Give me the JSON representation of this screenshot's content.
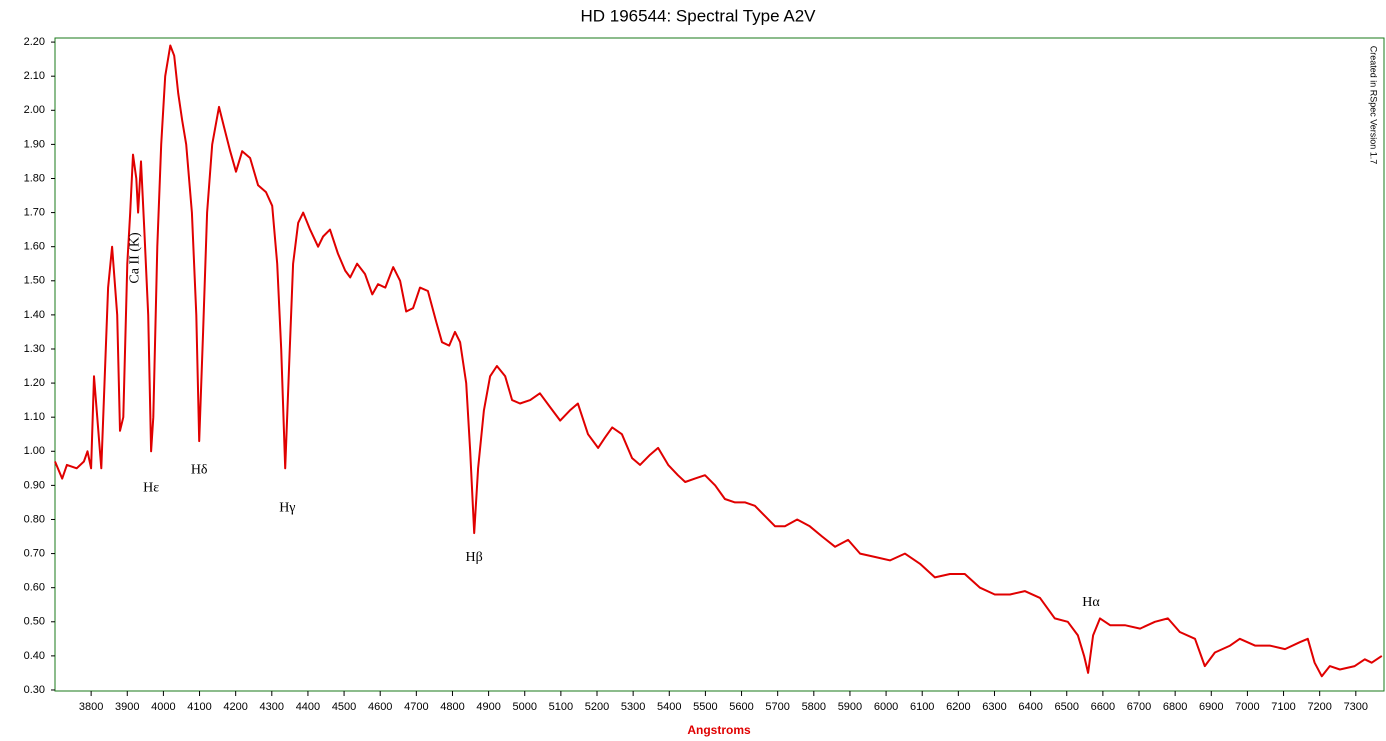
{
  "chart_data": {
    "type": "line",
    "title": "HD 196544: Spectral Type A2V",
    "x_label": "Angstroms",
    "watermark": "Created in RSpec Version 1.7",
    "color": "#e00000",
    "border_color": "#1a7a1a",
    "x": [
      3700,
      3720,
      3733,
      3760,
      3780,
      3790,
      3800,
      3808,
      3828,
      3847,
      3858,
      3872,
      3880,
      3889,
      3900,
      3908,
      3916,
      3925,
      3930,
      3938,
      3947,
      3958,
      3966,
      3972,
      3983,
      3994,
      4005,
      4019,
      4030,
      4041,
      4052,
      4063,
      4079,
      4091,
      4099,
      4110,
      4121,
      4135,
      4154,
      4168,
      4185,
      4201,
      4218,
      4240,
      4262,
      4284,
      4301,
      4315,
      4326,
      4337,
      4348,
      4359,
      4373,
      4387,
      4406,
      4428,
      4442,
      4461,
      4483,
      4503,
      4517,
      4536,
      4558,
      4578,
      4594,
      4614,
      4636,
      4655,
      4672,
      4691,
      4710,
      4732,
      4755,
      4771,
      4791,
      4807,
      4821,
      4838,
      4849,
      4860,
      4871,
      4887,
      4904,
      4923,
      4946,
      4965,
      4987,
      5015,
      5042,
      5070,
      5098,
      5125,
      5147,
      5175,
      5203,
      5222,
      5242,
      5269,
      5297,
      5319,
      5347,
      5369,
      5397,
      5424,
      5444,
      5471,
      5499,
      5527,
      5554,
      5582,
      5610,
      5637,
      5665,
      5693,
      5720,
      5754,
      5789,
      5823,
      5859,
      5895,
      5928,
      5970,
      6011,
      6052,
      6094,
      6135,
      6177,
      6218,
      6260,
      6301,
      6343,
      6384,
      6426,
      6467,
      6503,
      6531,
      6548,
      6559,
      6573,
      6592,
      6620,
      6661,
      6703,
      6744,
      6780,
      6813,
      6855,
      6882,
      6910,
      6952,
      6979,
      7021,
      7062,
      7104,
      7145,
      7167,
      7186,
      7206,
      7228,
      7256,
      7297,
      7325,
      7344,
      7372
    ],
    "values": [
      0.97,
      0.92,
      0.96,
      0.95,
      0.97,
      1.0,
      0.95,
      1.22,
      0.95,
      1.48,
      1.6,
      1.4,
      1.06,
      1.1,
      1.55,
      1.7,
      1.87,
      1.8,
      1.7,
      1.85,
      1.65,
      1.4,
      1.0,
      1.1,
      1.6,
      1.9,
      2.1,
      2.19,
      2.16,
      2.05,
      1.97,
      1.9,
      1.7,
      1.4,
      1.03,
      1.35,
      1.7,
      1.9,
      2.01,
      1.95,
      1.88,
      1.82,
      1.88,
      1.86,
      1.78,
      1.76,
      1.72,
      1.55,
      1.3,
      0.95,
      1.25,
      1.55,
      1.67,
      1.7,
      1.65,
      1.6,
      1.63,
      1.65,
      1.58,
      1.53,
      1.51,
      1.55,
      1.52,
      1.46,
      1.49,
      1.48,
      1.54,
      1.5,
      1.41,
      1.42,
      1.48,
      1.47,
      1.38,
      1.32,
      1.31,
      1.35,
      1.32,
      1.2,
      1.0,
      0.76,
      0.95,
      1.12,
      1.22,
      1.25,
      1.22,
      1.15,
      1.14,
      1.15,
      1.17,
      1.13,
      1.09,
      1.12,
      1.14,
      1.05,
      1.01,
      1.04,
      1.07,
      1.05,
      0.98,
      0.96,
      0.99,
      1.01,
      0.96,
      0.93,
      0.91,
      0.92,
      0.93,
      0.9,
      0.86,
      0.85,
      0.85,
      0.84,
      0.81,
      0.78,
      0.78,
      0.8,
      0.78,
      0.75,
      0.72,
      0.74,
      0.7,
      0.69,
      0.68,
      0.7,
      0.67,
      0.63,
      0.64,
      0.64,
      0.6,
      0.58,
      0.58,
      0.59,
      0.57,
      0.51,
      0.5,
      0.46,
      0.4,
      0.35,
      0.46,
      0.51,
      0.49,
      0.49,
      0.48,
      0.5,
      0.51,
      0.47,
      0.45,
      0.37,
      0.41,
      0.43,
      0.45,
      0.43,
      0.43,
      0.42,
      0.44,
      0.45,
      0.38,
      0.34,
      0.37,
      0.36,
      0.37,
      0.39,
      0.38,
      0.4
    ],
    "xlim": [
      3700,
      7378
    ],
    "ylim": [
      0.297,
      2.212
    ],
    "xticks": [
      3800,
      3900,
      4000,
      4100,
      4200,
      4300,
      4400,
      4500,
      4600,
      4700,
      4800,
      4900,
      5000,
      5100,
      5200,
      5300,
      5400,
      5500,
      5600,
      5700,
      5800,
      5900,
      6000,
      6100,
      6200,
      6300,
      6400,
      6500,
      6600,
      6700,
      6800,
      6900,
      7000,
      7100,
      7200,
      7300
    ],
    "yticks": [
      {
        "value": 0.3,
        "label": "0.30"
      },
      {
        "value": 0.4,
        "label": "0.40"
      },
      {
        "value": 0.5,
        "label": "0.50"
      },
      {
        "value": 0.6,
        "label": "0.60"
      },
      {
        "value": 0.7,
        "label": "0.70"
      },
      {
        "value": 0.8,
        "label": "0.80"
      },
      {
        "value": 0.9,
        "label": "0.90"
      },
      {
        "value": 1.0,
        "label": "1.00"
      },
      {
        "value": 1.1,
        "label": "1.10"
      },
      {
        "value": 1.2,
        "label": "1.20"
      },
      {
        "value": 1.3,
        "label": "1.30"
      },
      {
        "value": 1.4,
        "label": "1.40"
      },
      {
        "value": 1.5,
        "label": "1.50"
      },
      {
        "value": 1.6,
        "label": "1.60"
      },
      {
        "value": 1.7,
        "label": "1.70"
      },
      {
        "value": 1.8,
        "label": "1.80"
      },
      {
        "value": 1.9,
        "label": "1.90"
      },
      {
        "value": 2.0,
        "label": "2.00"
      },
      {
        "value": 2.1,
        "label": "2.10"
      },
      {
        "value": 2.2,
        "label": "2.20"
      }
    ],
    "annotations": [
      {
        "text": "Ca II (K)",
        "x": 3922,
        "y": 1.567,
        "rotate": -90
      },
      {
        "text": "Hε",
        "x": 3966,
        "y": 0.892
      },
      {
        "text": "Hδ",
        "x": 4099,
        "y": 0.945
      },
      {
        "text": "Hγ",
        "x": 4343,
        "y": 0.833
      },
      {
        "text": "Hβ",
        "x": 4860,
        "y": 0.687
      },
      {
        "text": "Hα",
        "x": 6567,
        "y": 0.555
      }
    ]
  }
}
